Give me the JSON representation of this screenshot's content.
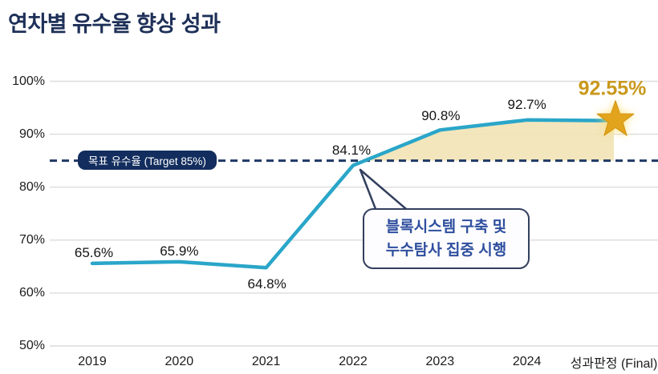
{
  "title": "연차별 유수율 향상 성과",
  "colors": {
    "title_navy": "#1E3058",
    "line_teal": "#2AA6C9",
    "shade_beige": "#F2E3B5",
    "grid_gray": "#DCDCDC",
    "dashed_navy": "#1F3864",
    "target_box_bg": "#132E5E",
    "target_box_text": "#FFFFFF",
    "callout_text_blue": "#2E4E9E",
    "callout_border": "#333F5E",
    "final_gold": "#C9991D",
    "star_gold": "#E3A41D"
  },
  "target": {
    "label": "목표 유수율 (Target 85%)",
    "value": 85
  },
  "callout": {
    "line1": "블록시스템 구축 및",
    "line2": "누수탐사 집중 시행"
  },
  "icons": {
    "star": "star-icon"
  },
  "chart_data": {
    "type": "line",
    "title": "연차별 유수율 향상 성과",
    "categories": [
      "2019",
      "2020",
      "2021",
      "2022",
      "2023",
      "2024",
      "성과판정 (Final)"
    ],
    "values": [
      65.6,
      65.9,
      64.8,
      84.1,
      90.8,
      92.7,
      92.55
    ],
    "labels": [
      "65.6%",
      "65.9%",
      "64.8%",
      "84.1%",
      "90.8%",
      "92.7%",
      "92.55%"
    ],
    "target_value": 85,
    "target_label": "목표 유수율 (Target 85%)",
    "ylim": [
      50,
      100
    ],
    "ytick_step": 10,
    "ytick_labels": [
      "100%",
      "90%",
      "80%",
      "70%",
      "60%",
      "50%"
    ],
    "xlabel": "",
    "ylabel": "",
    "grid": true,
    "legend": "none",
    "shade_between_curve_and_target": true,
    "annotation_final_star": true
  }
}
